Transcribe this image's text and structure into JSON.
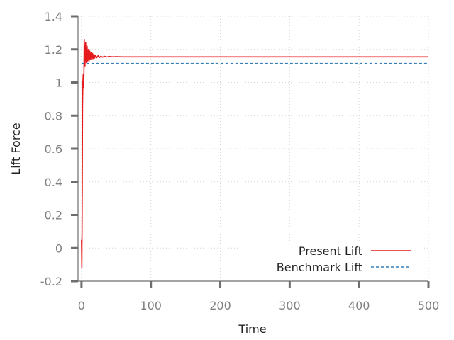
{
  "chart_data": {
    "type": "line",
    "xlabel": "Time",
    "ylabel": "Lift Force",
    "xlim": [
      -5,
      500
    ],
    "ylim": [
      -0.2,
      1.4
    ],
    "xticks": [
      0,
      100,
      200,
      300,
      400,
      500
    ],
    "xtick_labels": [
      "0",
      "100",
      "200",
      "300",
      "400",
      "500"
    ],
    "yticks": [
      -0.2,
      0,
      0.2,
      0.4,
      0.6,
      0.8,
      1,
      1.2,
      1.4
    ],
    "ytick_labels": [
      "-0.2",
      "0",
      "0.2",
      "0.4",
      "0.6",
      "0.8",
      "1",
      "1.2",
      "1.4"
    ],
    "grid": true,
    "legend_position": "bottom-right",
    "series": [
      {
        "name": "Present Lift",
        "color": "#e41a1c",
        "style": "solid",
        "x": [
          0,
          0.5,
          1,
          1.5,
          2,
          2.5,
          3,
          3.5,
          4,
          5,
          6,
          7,
          8,
          9,
          10,
          11,
          12,
          13,
          14,
          15,
          16,
          17,
          18,
          19,
          20,
          22,
          24,
          26,
          28,
          30,
          33,
          36,
          40,
          45,
          50,
          60,
          80,
          100,
          200,
          300,
          400,
          500
        ],
        "y": [
          0.05,
          -0.12,
          0.3,
          0.85,
          1.0,
          1.05,
          0.97,
          1.05,
          1.26,
          1.1,
          1.24,
          1.12,
          1.22,
          1.13,
          1.2,
          1.13,
          1.19,
          1.14,
          1.18,
          1.14,
          1.175,
          1.145,
          1.17,
          1.148,
          1.165,
          1.15,
          1.162,
          1.151,
          1.159,
          1.153,
          1.158,
          1.154,
          1.157,
          1.155,
          1.156,
          1.155,
          1.155,
          1.155,
          1.155,
          1.155,
          1.155,
          1.155
        ]
      },
      {
        "name": "Benchmark Lift",
        "color": "#377eb8",
        "style": "dashed",
        "x": [
          0,
          500
        ],
        "y": [
          1.115,
          1.115
        ]
      }
    ]
  }
}
